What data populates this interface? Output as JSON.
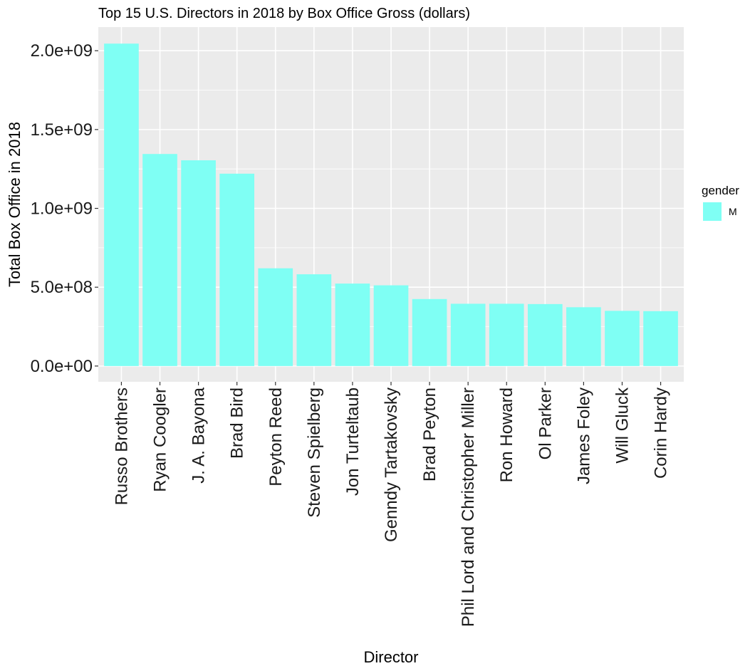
{
  "chart_data": {
    "type": "bar",
    "title": "Top 15 U.S. Directors in 2018 by Box Office Gross (dollars)",
    "xlabel": "Director",
    "ylabel": "Total Box Office in 2018",
    "categories": [
      "Russo Brothers",
      "Ryan Coogler",
      "J. A. Bayona",
      "Brad Bird",
      "Peyton Reed",
      "Steven Spielberg",
      "Jon Turteltaub",
      "Genndy Tartakovsky",
      "Brad Peyton",
      "Phil Lord and Christopher Miller",
      "Ron Howard",
      "Ol Parker",
      "James Foley",
      "Will Gluck",
      "Corin Hardy"
    ],
    "series": [
      {
        "name": "M",
        "values": [
          2045000000,
          1345000000,
          1305000000,
          1220000000,
          620000000,
          582000000,
          523000000,
          512000000,
          425000000,
          395000000,
          395000000,
          393000000,
          373000000,
          350000000,
          348000000
        ]
      }
    ],
    "ylim": [
      -100000000,
      2150000000
    ],
    "yticks": [
      0,
      500000000,
      1000000000,
      1500000000,
      2000000000
    ],
    "ytick_labels": [
      "0.0e+00",
      "5.0e+08",
      "1.0e+09",
      "1.5e+09",
      "2.0e+09"
    ],
    "grid": true,
    "legend": {
      "title": "gender",
      "position": "right",
      "labels": [
        "M"
      ]
    },
    "colors": {
      "bar": "#7ffff4",
      "panel": "#ebebeb",
      "grid": "#ffffff"
    }
  }
}
